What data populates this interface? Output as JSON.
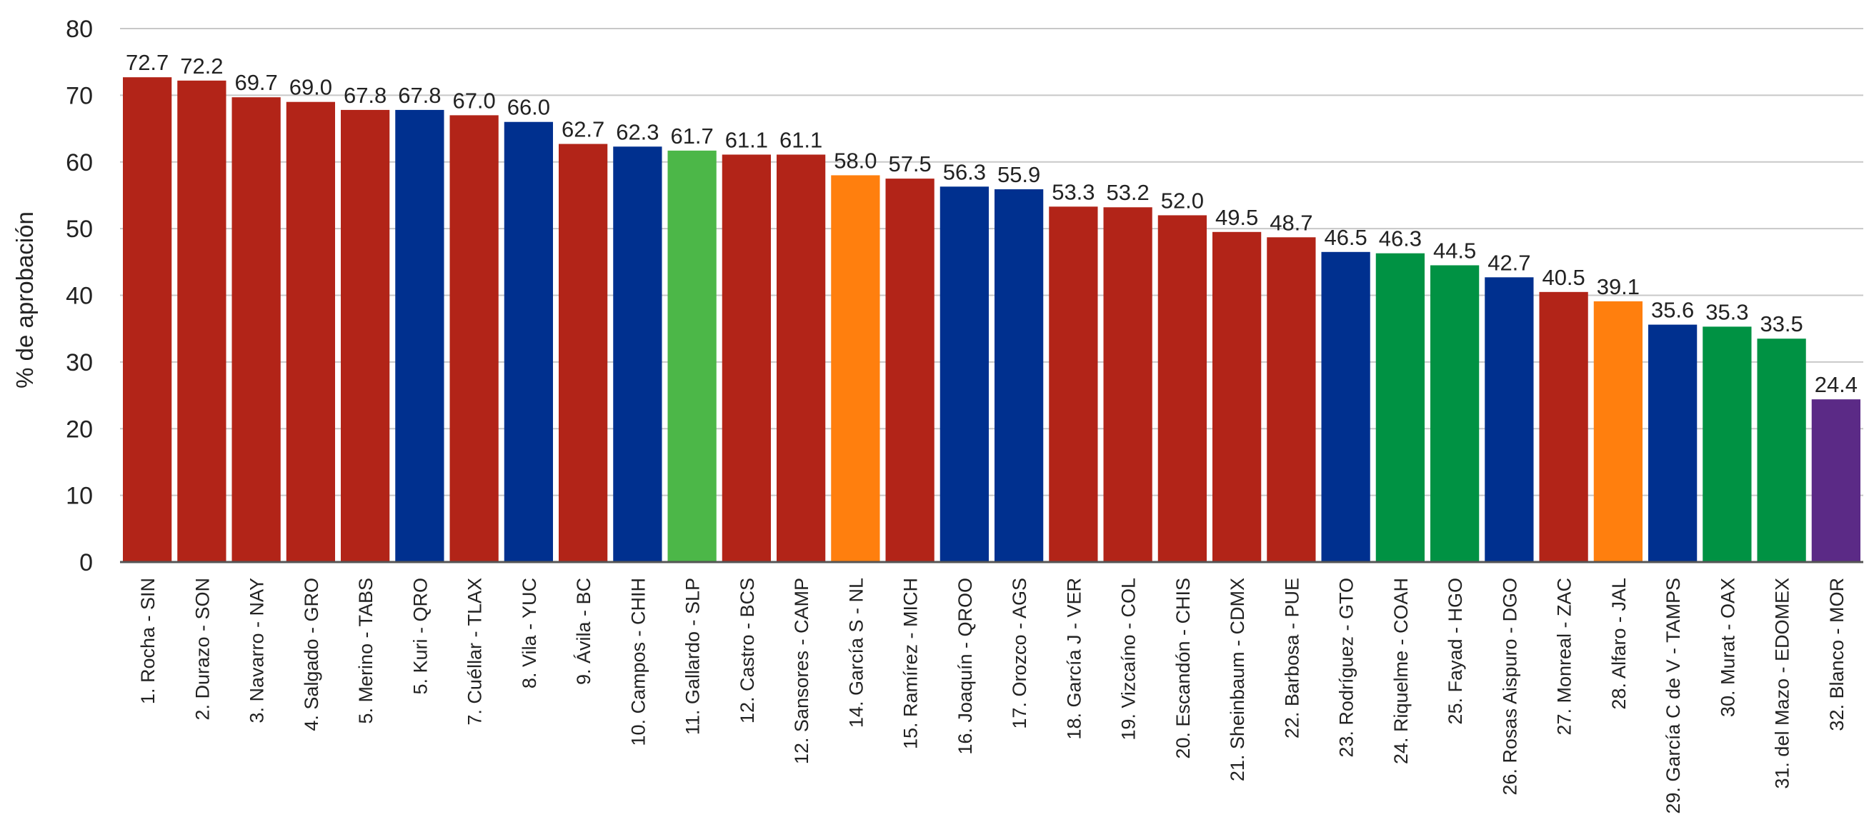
{
  "chart_data": {
    "type": "bar",
    "title": "",
    "xlabel": "",
    "ylabel": "% de aprobación",
    "ylim": [
      0,
      80
    ],
    "yticks": [
      0,
      10,
      20,
      30,
      40,
      50,
      60,
      70,
      80
    ],
    "grid": true,
    "value_labels": true,
    "colors": {
      "red": "#b22418",
      "blue": "#00308f",
      "lightgreen": "#4cb748",
      "orange": "#ff7f0e",
      "green": "#009243",
      "purple": "#5b2a86"
    },
    "categories": [
      "1. Rocha - SIN",
      "2. Durazo - SON",
      "3. Navarro - NAY",
      "4. Salgado - GRO",
      "5. Merino - TABS",
      "5. Kuri - QRO",
      "7. Cuéllar - TLAX",
      "8. Vila - YUC",
      "9. Ávila - BC",
      "10. Campos - CHIH",
      "11. Gallardo - SLP",
      "12. Castro - BCS",
      "12. Sansores - CAMP",
      "14. García S - NL",
      "15. Ramírez - MICH",
      "16. Joaquín - QROO",
      "17. Orozco - AGS",
      "18. García J - VER",
      "19. Vizcaíno - COL",
      "20. Escandón - CHIS",
      "21. Sheinbaum - CDMX",
      "22. Barbosa - PUE",
      "23. Rodríguez - GTO",
      "24. Riquelme - COAH",
      "25. Fayad - HGO",
      "26. Rosas Aispuro - DGO",
      "27. Monreal - ZAC",
      "28. Alfaro - JAL",
      "29. García C de V - TAMPS",
      "30. Murat - OAX",
      "31. del Mazo - EDOMEX",
      "32. Blanco - MOR"
    ],
    "values": [
      72.7,
      72.2,
      69.7,
      69.0,
      67.8,
      67.8,
      67.0,
      66.0,
      62.7,
      62.3,
      61.7,
      61.1,
      61.1,
      58.0,
      57.5,
      56.3,
      55.9,
      53.3,
      53.2,
      52.0,
      49.5,
      48.7,
      46.5,
      46.3,
      44.5,
      42.7,
      40.5,
      39.1,
      35.6,
      35.3,
      33.5,
      24.4
    ],
    "value_labels_text": [
      "72.7",
      "72.2",
      "69.7",
      "69.0",
      "67.8",
      "67.8",
      "67.0",
      "66.0",
      "62.7",
      "62.3",
      "61.7",
      "61.1",
      "61.1",
      "58.0",
      "57.5",
      "56.3",
      "55.9",
      "53.3",
      "53.2",
      "52.0",
      "49.5",
      "48.7",
      "46.5",
      "46.3",
      "44.5",
      "42.7",
      "40.5",
      "39.1",
      "35.6",
      "35.3",
      "33.5",
      "24.4"
    ],
    "bar_colors": [
      "red",
      "red",
      "red",
      "red",
      "red",
      "blue",
      "red",
      "blue",
      "red",
      "blue",
      "lightgreen",
      "red",
      "red",
      "orange",
      "red",
      "blue",
      "blue",
      "red",
      "red",
      "red",
      "red",
      "red",
      "blue",
      "green",
      "green",
      "blue",
      "red",
      "orange",
      "blue",
      "green",
      "green",
      "purple"
    ]
  }
}
